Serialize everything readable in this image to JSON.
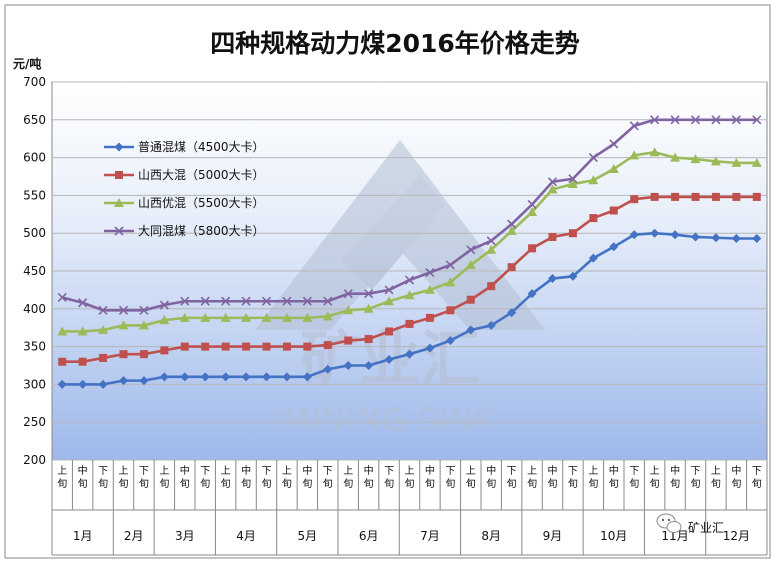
{
  "chart_data": {
    "type": "line",
    "title": "四种规格动力煤2016年价格走势",
    "ylabel": "元/吨",
    "ylim": [
      200,
      700
    ],
    "yticks": [
      200,
      250,
      300,
      350,
      400,
      450,
      500,
      550,
      600,
      650,
      700
    ],
    "grid": true,
    "legend_position": "upper-left",
    "months": [
      "1月",
      "2月",
      "3月",
      "4月",
      "5月",
      "6月",
      "7月",
      "8月",
      "9月",
      "10月",
      "11月",
      "12月"
    ],
    "month_period_counts": [
      3,
      2,
      3,
      3,
      3,
      3,
      3,
      3,
      3,
      3,
      3,
      3
    ],
    "categories": [
      "上旬",
      "中旬",
      "下旬",
      "上旬",
      "下旬",
      "上旬",
      "中旬",
      "下旬",
      "上旬",
      "中旬",
      "下旬",
      "上旬",
      "中旬",
      "下旬",
      "上旬",
      "中旬",
      "下旬",
      "上旬",
      "中旬",
      "下旬",
      "上旬",
      "中旬",
      "下旬",
      "上旬",
      "中旬",
      "下旬",
      "上旬",
      "中旬",
      "下旬",
      "上旬",
      "中旬",
      "下旬",
      "上旬",
      "中旬",
      "下旬"
    ],
    "series": [
      {
        "name": "普通混煤（4500大卡）",
        "color": "#4472c4",
        "marker": "diamond",
        "values": [
          300,
          300,
          300,
          305,
          305,
          310,
          310,
          310,
          310,
          310,
          310,
          310,
          310,
          320,
          325,
          325,
          333,
          340,
          348,
          358,
          372,
          378,
          395,
          420,
          440,
          443,
          467,
          482,
          498,
          500,
          498,
          495,
          494,
          493,
          493
        ]
      },
      {
        "name": "山西大混（5000大卡）",
        "color": "#c0504d",
        "marker": "square",
        "values": [
          330,
          330,
          335,
          340,
          340,
          345,
          350,
          350,
          350,
          350,
          350,
          350,
          350,
          352,
          358,
          360,
          370,
          380,
          388,
          398,
          412,
          430,
          455,
          480,
          495,
          500,
          520,
          530,
          545,
          548,
          548,
          548,
          548,
          548,
          548
        ]
      },
      {
        "name": "山西优混（5500大卡）",
        "color": "#9bbb59",
        "marker": "triangle",
        "values": [
          370,
          370,
          372,
          378,
          378,
          385,
          388,
          388,
          388,
          388,
          388,
          388,
          388,
          390,
          398,
          400,
          410,
          418,
          425,
          435,
          458,
          478,
          503,
          528,
          558,
          565,
          570,
          585,
          603,
          607,
          600,
          598,
          595,
          593,
          593
        ]
      },
      {
        "name": "大同混煤（5800大卡）",
        "color": "#8064a2",
        "marker": "x",
        "values": [
          415,
          408,
          398,
          398,
          398,
          405,
          410,
          410,
          410,
          410,
          410,
          410,
          410,
          410,
          420,
          420,
          425,
          438,
          448,
          458,
          478,
          490,
          512,
          538,
          568,
          572,
          600,
          618,
          642,
          650,
          650,
          650,
          650,
          650,
          650
        ]
      }
    ]
  },
  "watermark": {
    "logo_text": "矿业汇",
    "brand": "MINING SINK"
  },
  "badge": {
    "text": "矿业汇"
  }
}
